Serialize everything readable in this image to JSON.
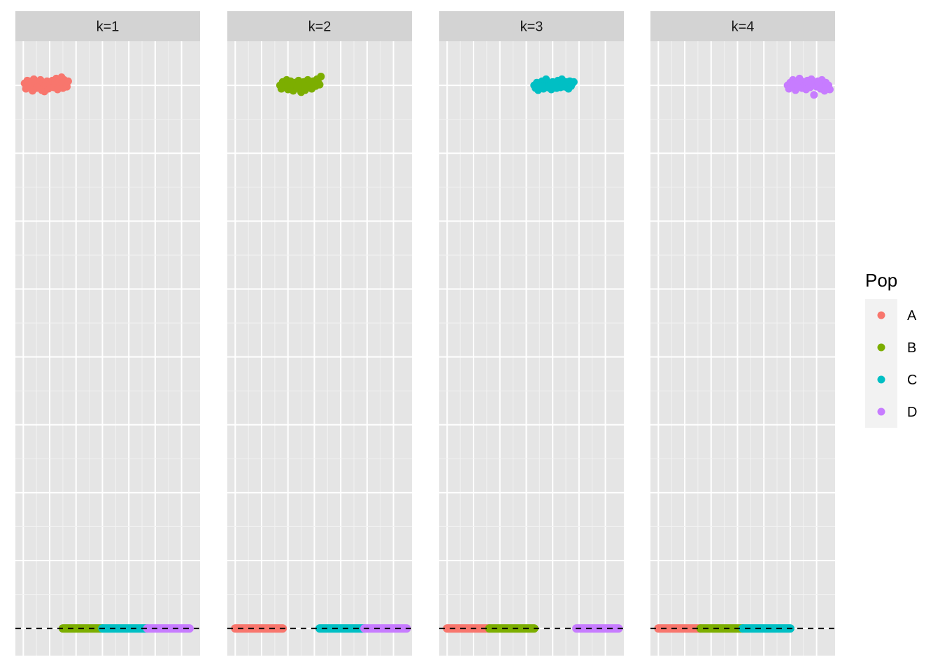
{
  "chart_data": {
    "type": "scatter",
    "facet_variable": "k",
    "facets": [
      {
        "label": "k=1",
        "points": {
          "series": "A",
          "x": [
            0.05,
            0.1,
            0.15,
            0.2,
            0.25,
            0.3,
            0.35,
            0.4,
            0.45,
            0.5,
            0.55,
            0.6,
            0.65,
            0.7,
            0.75,
            0.8,
            0.85,
            0.9,
            0.95,
            1.0,
            1.05,
            1.1,
            1.15,
            1.2,
            1.25,
            1.3,
            1.35,
            1.4,
            1.45,
            1.5,
            1.55,
            1.6,
            1.65,
            1.7
          ],
          "y": [
            1.03,
            0.95,
            1.07,
            0.97,
            1.06,
            1.02,
            0.92,
            1.09,
            1.0,
            0.96,
            1.05,
            0.98,
            1.08,
            0.93,
            1.03,
            0.91,
            1.01,
            1.06,
            0.95,
            1.02,
            0.99,
            1.07,
            0.97,
            1.04,
            1.1,
            0.94,
            1.05,
            1.0,
            1.12,
            0.96,
            1.08,
            1.03,
            0.98,
            1.06
          ]
        },
        "segments": [
          {
            "series": "B",
            "from": 1.5,
            "to": 3.0
          },
          {
            "series": "C",
            "from": 3.0,
            "to": 4.7
          },
          {
            "series": "D",
            "from": 4.7,
            "to": 6.3
          }
        ]
      },
      {
        "label": "k=2",
        "points": {
          "series": "B",
          "x": [
            1.7,
            1.75,
            1.8,
            1.85,
            1.9,
            1.95,
            2.0,
            2.05,
            2.1,
            2.15,
            2.2,
            2.25,
            2.3,
            2.35,
            2.4,
            2.45,
            2.5,
            2.55,
            2.6,
            2.65,
            2.7,
            2.75,
            2.8,
            2.85,
            2.9,
            2.95,
            3.0,
            3.05,
            3.1,
            3.15,
            3.2,
            3.25
          ],
          "y": [
            1.0,
            0.95,
            1.05,
            1.02,
            0.97,
            1.08,
            0.94,
            1.03,
            1.06,
            0.99,
            0.92,
            1.04,
            1.01,
            0.96,
            1.07,
            0.98,
            0.9,
            1.02,
            1.05,
            0.93,
            1.0,
            1.08,
            0.97,
            1.03,
            0.95,
            1.06,
            1.02,
            0.99,
            1.09,
            1.04,
            1.01,
            1.13
          ]
        },
        "segments": [
          {
            "series": "A",
            "from": 0.0,
            "to": 1.8
          },
          {
            "series": "C",
            "from": 3.2,
            "to": 4.9
          },
          {
            "series": "D",
            "from": 4.9,
            "to": 6.5
          }
        ]
      },
      {
        "label": "k=3",
        "points": {
          "series": "C",
          "x": [
            3.3,
            3.35,
            3.4,
            3.45,
            3.5,
            3.55,
            3.6,
            3.65,
            3.7,
            3.75,
            3.8,
            3.85,
            3.9,
            3.95,
            4.0,
            4.05,
            4.1,
            4.15,
            4.2,
            4.25,
            4.3,
            4.35,
            4.4,
            4.45,
            4.5,
            4.55,
            4.6,
            4.65,
            4.7,
            4.75,
            4.8
          ],
          "y": [
            1.0,
            0.96,
            1.04,
            0.93,
            1.02,
            0.98,
            1.06,
            0.95,
            1.0,
            1.09,
            0.97,
            1.03,
            1.01,
            0.94,
            1.05,
            0.99,
            1.02,
            0.96,
            1.07,
            1.0,
            0.97,
            1.09,
            1.03,
            0.98,
            1.05,
            1.01,
            0.95,
            1.06,
            0.99,
            1.03,
            1.05
          ]
        },
        "segments": [
          {
            "series": "A",
            "from": 0.0,
            "to": 1.6
          },
          {
            "series": "B",
            "from": 1.6,
            "to": 3.3
          },
          {
            "series": "D",
            "from": 4.9,
            "to": 6.5
          }
        ]
      },
      {
        "label": "k=4",
        "points": {
          "series": "D",
          "x": [
            4.9,
            4.95,
            5.0,
            5.05,
            5.1,
            5.15,
            5.2,
            5.25,
            5.3,
            5.35,
            5.4,
            5.45,
            5.5,
            5.55,
            5.6,
            5.65,
            5.7,
            5.75,
            5.8,
            5.85,
            5.9,
            5.95,
            6.0,
            6.05,
            6.1,
            6.15,
            6.2,
            6.25,
            6.3,
            6.35,
            6.4,
            6.45,
            6.5
          ],
          "y": [
            1.0,
            0.95,
            1.04,
            0.98,
            1.08,
            1.02,
            0.93,
            1.06,
            0.99,
            1.1,
            1.03,
            0.96,
            1.05,
            1.0,
            0.94,
            1.07,
            1.02,
            0.97,
            1.09,
            1.01,
            0.86,
            1.04,
            0.98,
            1.06,
            1.0,
            0.95,
            1.08,
            1.02,
            0.92,
            1.04,
            0.96,
            1.0,
            0.94
          ]
        },
        "segments": [
          {
            "series": "A",
            "from": 0.0,
            "to": 1.6
          },
          {
            "series": "B",
            "from": 1.6,
            "to": 3.2
          },
          {
            "series": "C",
            "from": 3.2,
            "to": 5.0
          }
        ]
      }
    ],
    "hline": {
      "y": -7.0,
      "style": "dashed",
      "color": "#000000"
    },
    "xlim": [
      -0.3,
      6.7
    ],
    "ylim": [
      -7.4,
      1.65
    ],
    "x_gridlines": [
      0,
      1,
      2,
      3,
      4,
      5,
      6
    ],
    "y_gridlines": [
      -7,
      -6,
      -5,
      -4,
      -3,
      -2,
      -1,
      0,
      1
    ],
    "axis_text_shown": false,
    "grid": true,
    "panel_background": "#e5e5e5",
    "strip_background": "#d3d3d3",
    "legend": {
      "title": "Pop",
      "position": "right",
      "entries": [
        {
          "label": "A",
          "color": "#f8766d"
        },
        {
          "label": "B",
          "color": "#7cae00"
        },
        {
          "label": "C",
          "color": "#00bfc4"
        },
        {
          "label": "D",
          "color": "#c77cff"
        }
      ]
    }
  }
}
